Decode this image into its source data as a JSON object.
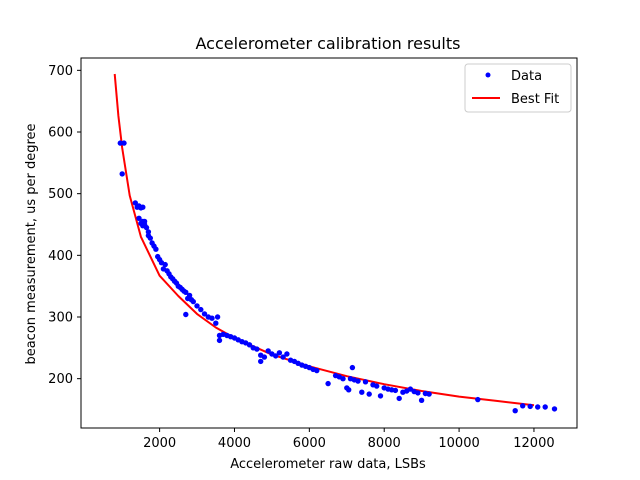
{
  "chart_data": {
    "type": "scatter",
    "title": "Accelerometer calibration results",
    "xlabel": "Accelerometer raw data, LSBs",
    "ylabel": "beacon measurement, us per degree",
    "xlim": [
      -100,
      13150
    ],
    "ylim": [
      120,
      720
    ],
    "xticks": [
      2000,
      4000,
      6000,
      8000,
      10000,
      12000
    ],
    "yticks": [
      200,
      300,
      400,
      500,
      600,
      700
    ],
    "grid": false,
    "legend": {
      "position": "top-right",
      "entries": [
        "Data",
        "Best Fit"
      ]
    },
    "colors": {
      "data": "#0000ff",
      "fit": "#ff0000"
    },
    "series": [
      {
        "name": "Data",
        "kind": "scatter",
        "points": [
          [
            950,
            582
          ],
          [
            1000,
            532
          ],
          [
            1050,
            582
          ],
          [
            1350,
            485
          ],
          [
            1400,
            478
          ],
          [
            1450,
            480
          ],
          [
            1500,
            477
          ],
          [
            1550,
            478
          ],
          [
            1450,
            460
          ],
          [
            1500,
            452
          ],
          [
            1550,
            455
          ],
          [
            1600,
            450
          ],
          [
            1650,
            445
          ],
          [
            1700,
            438
          ],
          [
            1550,
            448
          ],
          [
            1600,
            455
          ],
          [
            1700,
            432
          ],
          [
            1750,
            428
          ],
          [
            1800,
            420
          ],
          [
            1850,
            415
          ],
          [
            1900,
            410
          ],
          [
            1950,
            398
          ],
          [
            2000,
            393
          ],
          [
            2050,
            388
          ],
          [
            2100,
            378
          ],
          [
            2150,
            385
          ],
          [
            2200,
            375
          ],
          [
            2250,
            370
          ],
          [
            2300,
            365
          ],
          [
            2350,
            362
          ],
          [
            2400,
            358
          ],
          [
            2450,
            355
          ],
          [
            2500,
            350
          ],
          [
            2550,
            348
          ],
          [
            2600,
            345
          ],
          [
            2650,
            342
          ],
          [
            2700,
            340
          ],
          [
            2750,
            330
          ],
          [
            2800,
            335
          ],
          [
            2850,
            328
          ],
          [
            2900,
            325
          ],
          [
            3000,
            318
          ],
          [
            3100,
            312
          ],
          [
            3200,
            305
          ],
          [
            2700,
            304
          ],
          [
            3300,
            300
          ],
          [
            3400,
            298
          ],
          [
            3500,
            290
          ],
          [
            3550,
            300
          ],
          [
            3600,
            270
          ],
          [
            3600,
            262
          ],
          [
            3700,
            272
          ],
          [
            3800,
            270
          ],
          [
            3900,
            268
          ],
          [
            4000,
            266
          ],
          [
            4100,
            263
          ],
          [
            4200,
            260
          ],
          [
            4300,
            258
          ],
          [
            4400,
            255
          ],
          [
            4500,
            250
          ],
          [
            4600,
            248
          ],
          [
            4700,
            238
          ],
          [
            4700,
            228
          ],
          [
            4800,
            235
          ],
          [
            4900,
            245
          ],
          [
            5000,
            240
          ],
          [
            5100,
            237
          ],
          [
            5200,
            242
          ],
          [
            5300,
            235
          ],
          [
            5400,
            240
          ],
          [
            5500,
            230
          ],
          [
            5600,
            228
          ],
          [
            5700,
            225
          ],
          [
            5800,
            222
          ],
          [
            5900,
            220
          ],
          [
            6000,
            218
          ],
          [
            6100,
            215
          ],
          [
            6200,
            213
          ],
          [
            6500,
            192
          ],
          [
            6700,
            205
          ],
          [
            6800,
            203
          ],
          [
            6900,
            200
          ],
          [
            7000,
            185
          ],
          [
            7050,
            182
          ],
          [
            7100,
            200
          ],
          [
            7150,
            218
          ],
          [
            7200,
            198
          ],
          [
            7300,
            196
          ],
          [
            7400,
            178
          ],
          [
            7500,
            195
          ],
          [
            7600,
            175
          ],
          [
            7700,
            190
          ],
          [
            7800,
            188
          ],
          [
            7900,
            172
          ],
          [
            8000,
            185
          ],
          [
            8100,
            183
          ],
          [
            8200,
            182
          ],
          [
            8300,
            181
          ],
          [
            8400,
            168
          ],
          [
            8500,
            178
          ],
          [
            8600,
            180
          ],
          [
            8700,
            183
          ],
          [
            8800,
            179
          ],
          [
            8900,
            177
          ],
          [
            9000,
            165
          ],
          [
            9100,
            176
          ],
          [
            9200,
            175
          ],
          [
            10500,
            166
          ],
          [
            11500,
            148
          ],
          [
            11700,
            156
          ],
          [
            11900,
            155
          ],
          [
            12100,
            154
          ],
          [
            12300,
            154
          ],
          [
            12550,
            151
          ]
        ]
      },
      {
        "name": "Best Fit",
        "kind": "line",
        "x": [
          800,
          900,
          1000,
          1200,
          1500,
          2000,
          2500,
          3000,
          3500,
          4000,
          5000,
          6000,
          7000,
          8000,
          9000,
          10000,
          11000,
          12000
        ],
        "y": [
          694,
          626,
          574,
          497,
          430,
          367,
          334,
          305,
          283,
          266,
          239,
          220,
          204,
          191,
          180,
          171,
          164,
          157
        ]
      }
    ]
  }
}
